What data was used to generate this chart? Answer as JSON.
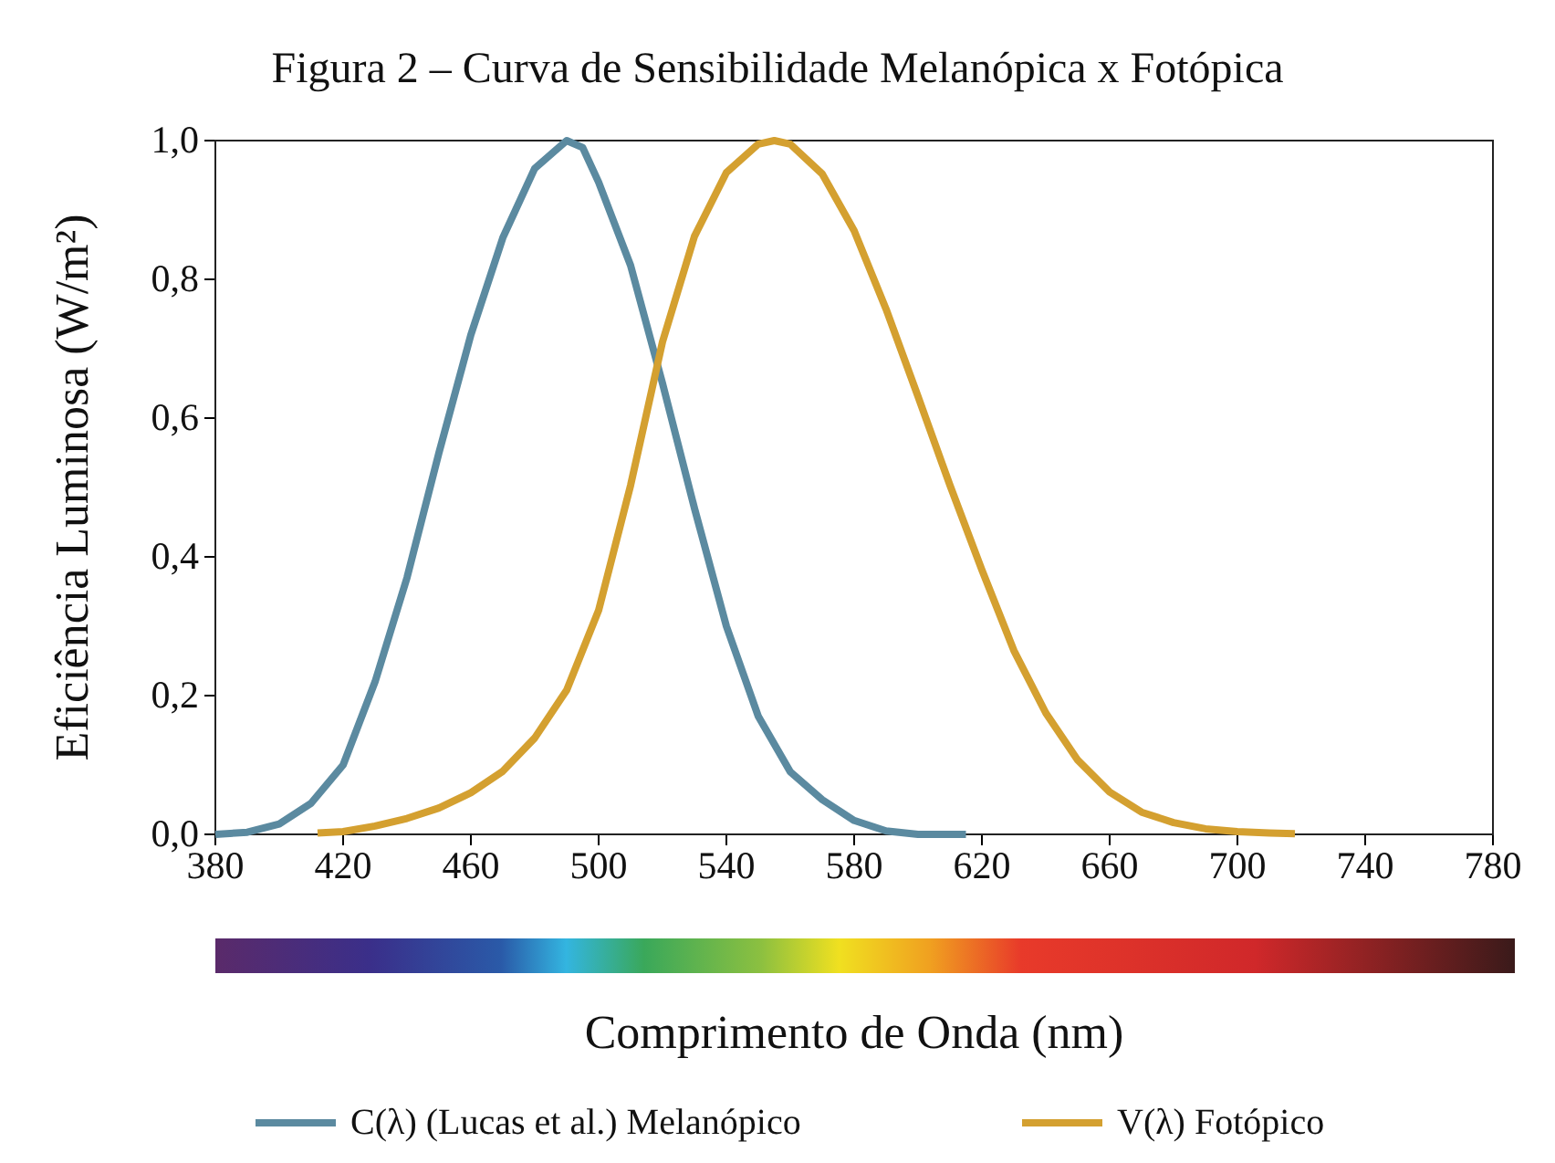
{
  "chart_data": {
    "type": "line",
    "title": "Figura 2 – Curva de Sensibilidade Melanópica x Fotópica",
    "xlabel": "Comprimento de Onda (nm)",
    "ylabel": "Eficiência Luminosa (W/m²)",
    "xlim": [
      380,
      780
    ],
    "xticks": [
      380,
      420,
      460,
      500,
      540,
      580,
      620,
      660,
      700,
      740,
      780
    ],
    "ylim": [
      0,
      1
    ],
    "yticks": [
      {
        "value": 0,
        "label": "0,0"
      },
      {
        "value": 0.2,
        "label": "0,2"
      },
      {
        "value": 0.4,
        "label": "0,4"
      },
      {
        "value": 0.6,
        "label": "0,6"
      },
      {
        "value": 0.8,
        "label": "0,8"
      },
      {
        "value": 1,
        "label": "1,0"
      }
    ],
    "legend": "bottom",
    "grid": false,
    "series": [
      {
        "name": "C(λ) (Lucas et al.) Melanópico",
        "color": "#5b8aa0",
        "x": [
          380,
          390,
          400,
          410,
          420,
          430,
          440,
          450,
          460,
          470,
          480,
          490,
          495,
          500,
          510,
          520,
          530,
          540,
          550,
          560,
          570,
          580,
          590,
          600,
          615
        ],
        "values": [
          0,
          0.003,
          0.015,
          0.045,
          0.1,
          0.22,
          0.37,
          0.55,
          0.72,
          0.86,
          0.96,
          1.0,
          0.99,
          0.94,
          0.82,
          0.65,
          0.47,
          0.3,
          0.17,
          0.09,
          0.05,
          0.02,
          0.005,
          0,
          0
        ]
      },
      {
        "name": "V(λ) Fotópico",
        "color": "#d4a030",
        "x": [
          412,
          420,
          430,
          440,
          450,
          460,
          470,
          480,
          490,
          500,
          510,
          520,
          530,
          540,
          550,
          555,
          560,
          570,
          580,
          590,
          600,
          610,
          620,
          630,
          640,
          650,
          660,
          670,
          680,
          690,
          700,
          710,
          718
        ],
        "values": [
          0.002,
          0.004,
          0.012,
          0.023,
          0.038,
          0.06,
          0.091,
          0.139,
          0.208,
          0.323,
          0.503,
          0.71,
          0.862,
          0.954,
          0.995,
          1.0,
          0.995,
          0.952,
          0.87,
          0.757,
          0.631,
          0.503,
          0.381,
          0.265,
          0.175,
          0.107,
          0.061,
          0.032,
          0.017,
          0.008,
          0.004,
          0.002,
          0.001
        ]
      }
    ]
  }
}
